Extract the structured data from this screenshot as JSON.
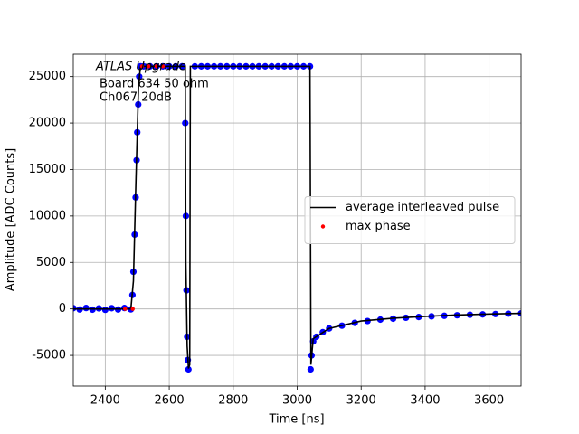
{
  "chart_data": {
    "type": "scatter",
    "xlabel": "Time [ns]",
    "ylabel": "Amplitude [ADC Counts]",
    "annotations": [
      "ATLAS Upgrade",
      "Board 634 50 ohm",
      "Ch067 20dB"
    ],
    "xlim": [
      2300,
      3700
    ],
    "ylim": [
      -8300,
      27400
    ],
    "xticks": [
      2400,
      2600,
      2800,
      3000,
      3200,
      3400,
      3600
    ],
    "yticks": [
      -5000,
      0,
      5000,
      10000,
      15000,
      20000,
      25000
    ],
    "grid": true,
    "legend": "center right",
    "series": [
      {
        "type": "scatter",
        "color": "#0000ff",
        "x": [
          2300,
          2320,
          2340,
          2360,
          2380,
          2400,
          2420,
          2440,
          2460,
          2480,
          2485,
          2488,
          2492,
          2495,
          2498,
          2500,
          2503,
          2506,
          2510,
          2520,
          2540,
          2560,
          2580,
          2600,
          2620,
          2640,
          2650,
          2652,
          2654,
          2656,
          2658,
          2660,
          2680,
          2700,
          2720,
          2740,
          2760,
          2780,
          2800,
          2820,
          2840,
          2860,
          2880,
          2900,
          2920,
          2940,
          2960,
          2980,
          3000,
          3020,
          3040,
          3042,
          3045,
          3050,
          3060,
          3080,
          3100,
          3140,
          3180,
          3220,
          3260,
          3300,
          3340,
          3380,
          3420,
          3460,
          3500,
          3540,
          3580,
          3620,
          3660,
          3700
        ],
        "values": [
          80,
          -60,
          100,
          -80,
          60,
          -100,
          80,
          -60,
          100,
          -50,
          1500,
          4000,
          8000,
          12000,
          16000,
          19000,
          22000,
          25000,
          26100,
          26100,
          26100,
          26100,
          26100,
          26100,
          26100,
          26100,
          20000,
          10000,
          2000,
          -3000,
          -5500,
          -6500,
          26100,
          26100,
          26100,
          26100,
          26100,
          26100,
          26100,
          26100,
          26100,
          26100,
          26100,
          26100,
          26100,
          26100,
          26100,
          26100,
          26100,
          26100,
          26100,
          -6500,
          -5000,
          -3500,
          -3000,
          -2500,
          -2100,
          -1800,
          -1500,
          -1300,
          -1150,
          -1050,
          -950,
          -870,
          -800,
          -740,
          -680,
          -630,
          -590,
          -550,
          -510,
          -480
        ]
      },
      {
        "type": "line",
        "name": "average interleaved pulse",
        "color": "#000000",
        "x": [
          2300,
          2480,
          2488,
          2496,
          2504,
          2510,
          2650,
          2652,
          2656,
          2660,
          2664,
          2666,
          3040,
          3043,
          3050,
          3100,
          3200,
          3300,
          3400,
          3500,
          3600,
          3700
        ],
        "values": [
          0,
          0,
          3000,
          14000,
          24000,
          26100,
          26100,
          5000,
          -4000,
          -6400,
          -6000,
          26100,
          26100,
          -6000,
          -3200,
          -2100,
          -1300,
          -1000,
          -800,
          -650,
          -550,
          -480
        ]
      },
      {
        "type": "scatter",
        "name": "max phase",
        "color": "#ff0000",
        "x": [
          2462,
          2486,
          2515,
          2535,
          2560,
          2580
        ],
        "values": [
          0,
          0,
          26100,
          26100,
          26100,
          26100
        ]
      }
    ]
  }
}
